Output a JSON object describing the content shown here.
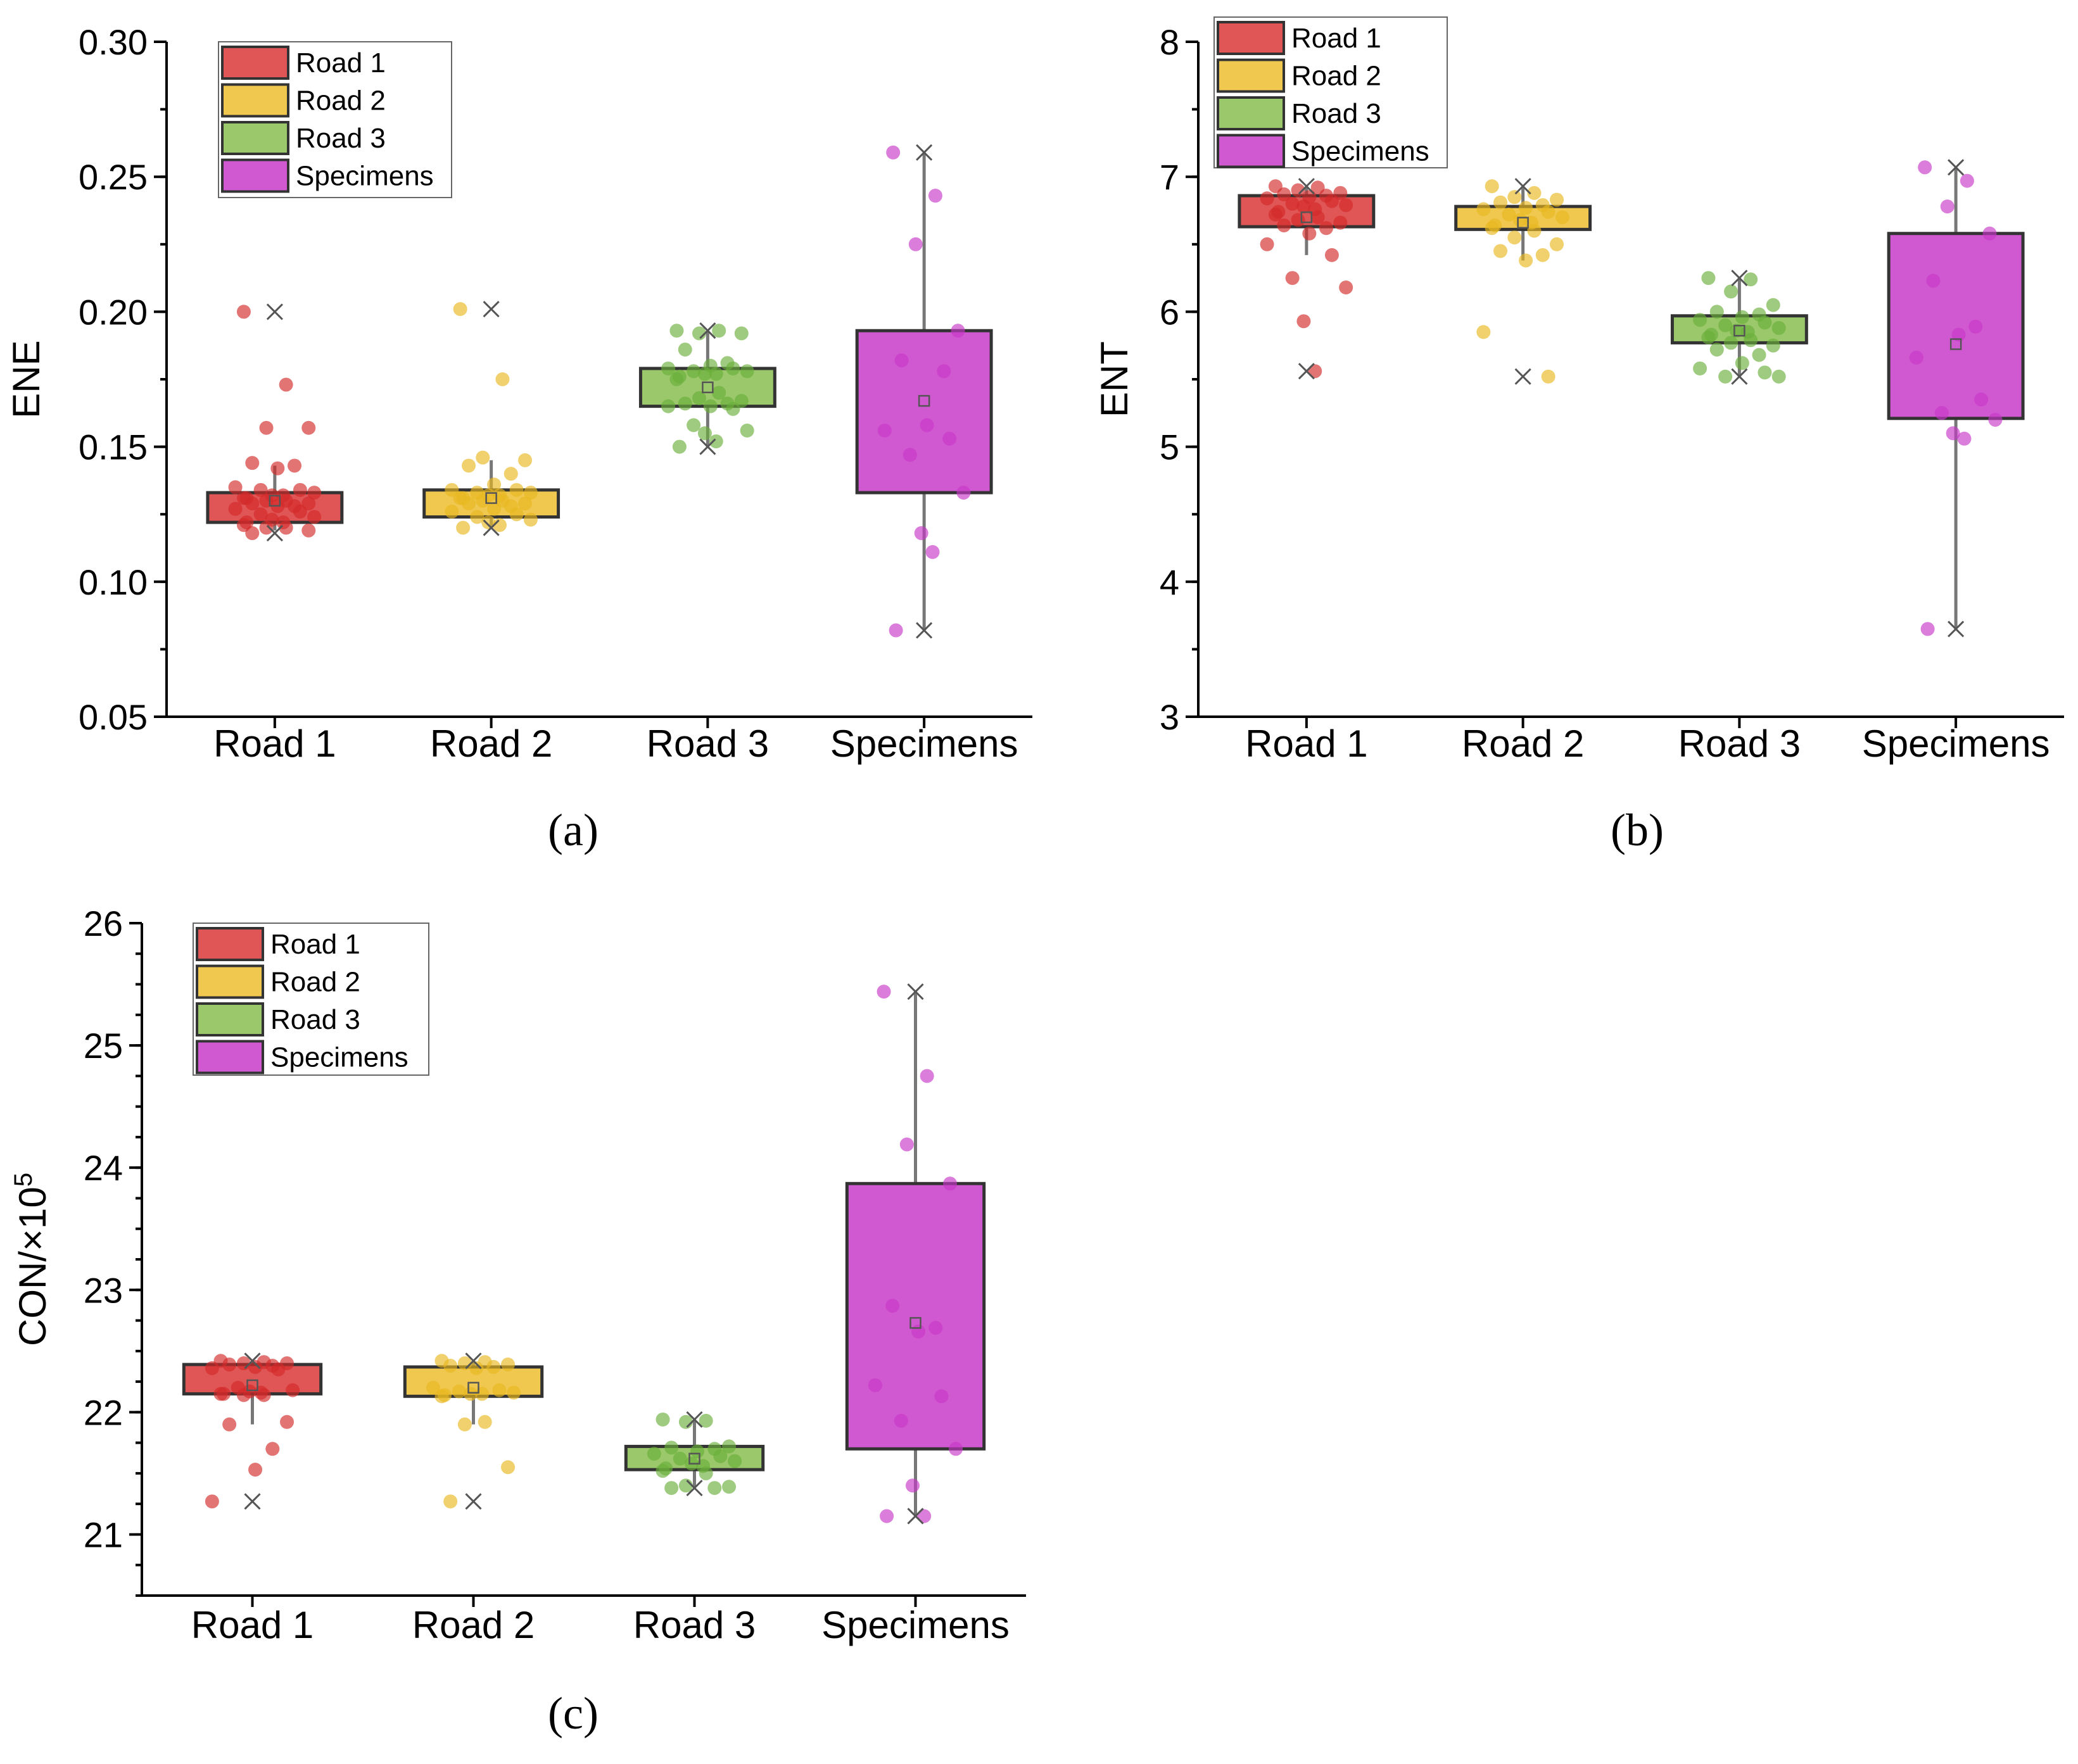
{
  "figure": {
    "panels": [
      "a",
      "b",
      "c"
    ]
  },
  "chart_data": [
    {
      "id": "a",
      "type": "box",
      "panel_label": "(a)",
      "title": "",
      "xlabel": "",
      "ylabel": "ENE",
      "ylim": [
        0.05,
        0.3
      ],
      "yticks": [
        0.05,
        0.1,
        0.15,
        0.2,
        0.25,
        0.3
      ],
      "ytick_labels": [
        "0.05",
        "0.10",
        "0.15",
        "0.20",
        "0.25",
        "0.30"
      ],
      "categories": [
        "Road 1",
        "Road 2",
        "Road 3",
        "Specimens"
      ],
      "legend": [
        "Road 1",
        "Road 2",
        "Road 3",
        "Specimens"
      ],
      "legend_position": "top-left",
      "series": [
        {
          "name": "Road 1",
          "color": "#e05555",
          "point_color": "#d42a2a",
          "q1": 0.122,
          "q3": 0.133,
          "median": 0.128,
          "mean": 0.13,
          "whisker_low": 0.119,
          "whisker_high": 0.143,
          "min": 0.118,
          "max": 0.2,
          "points": [
            0.2,
            0.173,
            0.157,
            0.157,
            0.144,
            0.143,
            0.142,
            0.135,
            0.134,
            0.134,
            0.133,
            0.132,
            0.132,
            0.131,
            0.131,
            0.13,
            0.13,
            0.129,
            0.129,
            0.128,
            0.128,
            0.127,
            0.126,
            0.125,
            0.124,
            0.123,
            0.122,
            0.122,
            0.121,
            0.12,
            0.12,
            0.119,
            0.118
          ]
        },
        {
          "name": "Road 2",
          "color": "#f0c850",
          "point_color": "#e8b820",
          "q1": 0.124,
          "q3": 0.134,
          "median": 0.13,
          "mean": 0.131,
          "whisker_low": 0.12,
          "whisker_high": 0.145,
          "min": 0.12,
          "max": 0.201,
          "points": [
            0.201,
            0.175,
            0.146,
            0.145,
            0.143,
            0.14,
            0.136,
            0.134,
            0.134,
            0.133,
            0.133,
            0.132,
            0.132,
            0.131,
            0.131,
            0.13,
            0.13,
            0.129,
            0.129,
            0.128,
            0.127,
            0.126,
            0.125,
            0.124,
            0.123,
            0.122,
            0.121,
            0.12
          ]
        },
        {
          "name": "Road 3",
          "color": "#9bc86a",
          "point_color": "#6aaf3a",
          "q1": 0.165,
          "q3": 0.179,
          "median": 0.172,
          "mean": 0.172,
          "whisker_low": 0.15,
          "whisker_high": 0.193,
          "min": 0.15,
          "max": 0.193,
          "points": [
            0.193,
            0.193,
            0.192,
            0.192,
            0.186,
            0.181,
            0.18,
            0.179,
            0.179,
            0.178,
            0.178,
            0.177,
            0.177,
            0.176,
            0.175,
            0.17,
            0.168,
            0.167,
            0.166,
            0.166,
            0.165,
            0.165,
            0.164,
            0.158,
            0.156,
            0.155,
            0.152,
            0.15
          ]
        },
        {
          "name": "Specimens",
          "color": "#d058d0",
          "point_color": "#c838c8",
          "q1": 0.133,
          "q3": 0.193,
          "median": 0.155,
          "mean": 0.167,
          "whisker_low": 0.082,
          "whisker_high": 0.259,
          "min": 0.082,
          "max": 0.259,
          "points": [
            0.259,
            0.243,
            0.225,
            0.193,
            0.182,
            0.178,
            0.158,
            0.156,
            0.153,
            0.147,
            0.133,
            0.118,
            0.111,
            0.082
          ]
        }
      ]
    },
    {
      "id": "b",
      "type": "box",
      "panel_label": "(b)",
      "title": "",
      "xlabel": "",
      "ylabel": "ENT",
      "ylim": [
        3,
        8
      ],
      "yticks": [
        3,
        4,
        5,
        6,
        7,
        8
      ],
      "ytick_labels": [
        "3",
        "4",
        "5",
        "6",
        "7",
        "8"
      ],
      "categories": [
        "Road 1",
        "Road 2",
        "Road 3",
        "Specimens"
      ],
      "legend": [
        "Road 1",
        "Road 2",
        "Road 3",
        "Specimens"
      ],
      "legend_position": "top-left",
      "series": [
        {
          "name": "Road 1",
          "color": "#e05555",
          "point_color": "#d42a2a",
          "q1": 6.63,
          "q3": 6.86,
          "median": 6.77,
          "mean": 6.7,
          "whisker_low": 6.42,
          "whisker_high": 6.93,
          "min": 5.56,
          "max": 6.93,
          "points": [
            6.93,
            6.92,
            6.9,
            6.88,
            6.87,
            6.86,
            6.85,
            6.84,
            6.82,
            6.8,
            6.79,
            6.78,
            6.76,
            6.74,
            6.72,
            6.7,
            6.68,
            6.66,
            6.64,
            6.62,
            6.58,
            6.5,
            6.42,
            6.25,
            6.18,
            5.93,
            5.56
          ]
        },
        {
          "name": "Road 2",
          "color": "#f0c850",
          "point_color": "#e8b820",
          "q1": 6.61,
          "q3": 6.78,
          "median": 6.7,
          "mean": 6.66,
          "whisker_low": 6.38,
          "whisker_high": 6.93,
          "min": 5.52,
          "max": 6.93,
          "points": [
            6.93,
            6.88,
            6.85,
            6.83,
            6.81,
            6.79,
            6.77,
            6.76,
            6.74,
            6.72,
            6.7,
            6.68,
            6.66,
            6.64,
            6.62,
            6.6,
            6.55,
            6.5,
            6.45,
            6.42,
            6.38,
            5.85,
            5.52
          ]
        },
        {
          "name": "Road 3",
          "color": "#9bc86a",
          "point_color": "#6aaf3a",
          "q1": 5.77,
          "q3": 5.97,
          "median": 5.86,
          "mean": 5.86,
          "whisker_low": 5.52,
          "whisker_high": 6.25,
          "min": 5.52,
          "max": 6.25,
          "points": [
            6.25,
            6.24,
            6.15,
            6.05,
            6.0,
            5.98,
            5.96,
            5.94,
            5.92,
            5.9,
            5.88,
            5.86,
            5.85,
            5.83,
            5.81,
            5.79,
            5.77,
            5.75,
            5.72,
            5.68,
            5.62,
            5.58,
            5.55,
            5.52,
            5.52
          ]
        },
        {
          "name": "Specimens",
          "color": "#d058d0",
          "point_color": "#c838c8",
          "q1": 5.21,
          "q3": 6.58,
          "median": 5.8,
          "mean": 5.76,
          "whisker_low": 3.65,
          "whisker_high": 7.07,
          "min": 3.65,
          "max": 7.07,
          "points": [
            7.07,
            6.97,
            6.78,
            6.58,
            6.23,
            5.89,
            5.83,
            5.66,
            5.35,
            5.25,
            5.2,
            5.1,
            5.06,
            3.65
          ]
        }
      ]
    },
    {
      "id": "c",
      "type": "box",
      "panel_label": "(c)",
      "title": "",
      "xlabel": "",
      "ylabel": "CON/×10",
      "ylabel_superscript": "5",
      "ylim": [
        20.5,
        26
      ],
      "yticks": [
        21,
        22,
        23,
        24,
        25,
        26
      ],
      "ytick_labels": [
        "21",
        "22",
        "23",
        "24",
        "25",
        "26"
      ],
      "categories": [
        "Road 1",
        "Road 2",
        "Road 3",
        "Specimens"
      ],
      "legend": [
        "Road 1",
        "Road 2",
        "Road 3",
        "Specimens"
      ],
      "legend_position": "top-left",
      "series": [
        {
          "name": "Road 1",
          "color": "#e05555",
          "point_color": "#d42a2a",
          "q1": 22.15,
          "q3": 22.39,
          "median": 22.3,
          "mean": 22.22,
          "whisker_low": 21.9,
          "whisker_high": 22.42,
          "min": 21.27,
          "max": 22.42,
          "points": [
            22.42,
            22.41,
            22.4,
            22.4,
            22.39,
            22.38,
            22.37,
            22.36,
            22.35,
            22.2,
            22.18,
            22.17,
            22.16,
            22.15,
            22.15,
            22.14,
            22.14,
            21.92,
            21.9,
            21.7,
            21.53,
            21.27
          ]
        },
        {
          "name": "Road 2",
          "color": "#f0c850",
          "point_color": "#e8b820",
          "q1": 22.13,
          "q3": 22.37,
          "median": 22.22,
          "mean": 22.2,
          "whisker_low": 21.9,
          "whisker_high": 22.42,
          "min": 21.27,
          "max": 22.42,
          "points": [
            22.42,
            22.41,
            22.4,
            22.39,
            22.38,
            22.37,
            22.36,
            22.2,
            22.18,
            22.17,
            22.16,
            22.15,
            22.15,
            22.14,
            22.13,
            21.92,
            21.9,
            21.55,
            21.27
          ]
        },
        {
          "name": "Road 3",
          "color": "#9bc86a",
          "point_color": "#6aaf3a",
          "q1": 21.53,
          "q3": 21.72,
          "median": 21.62,
          "mean": 21.62,
          "whisker_low": 21.38,
          "whisker_high": 21.94,
          "min": 21.38,
          "max": 21.94,
          "points": [
            21.94,
            21.93,
            21.92,
            21.72,
            21.71,
            21.7,
            21.68,
            21.66,
            21.64,
            21.62,
            21.6,
            21.58,
            21.56,
            21.54,
            21.52,
            21.5,
            21.4,
            21.39,
            21.38,
            21.38
          ]
        },
        {
          "name": "Specimens",
          "color": "#d058d0",
          "point_color": "#c838c8",
          "q1": 21.7,
          "q3": 23.87,
          "median": 22.7,
          "mean": 22.73,
          "whisker_low": 21.15,
          "whisker_high": 25.44,
          "min": 21.15,
          "max": 25.44,
          "points": [
            25.44,
            24.75,
            24.19,
            23.87,
            22.87,
            22.69,
            22.66,
            22.22,
            22.13,
            21.93,
            21.7,
            21.4,
            21.15,
            21.15
          ]
        }
      ]
    }
  ]
}
